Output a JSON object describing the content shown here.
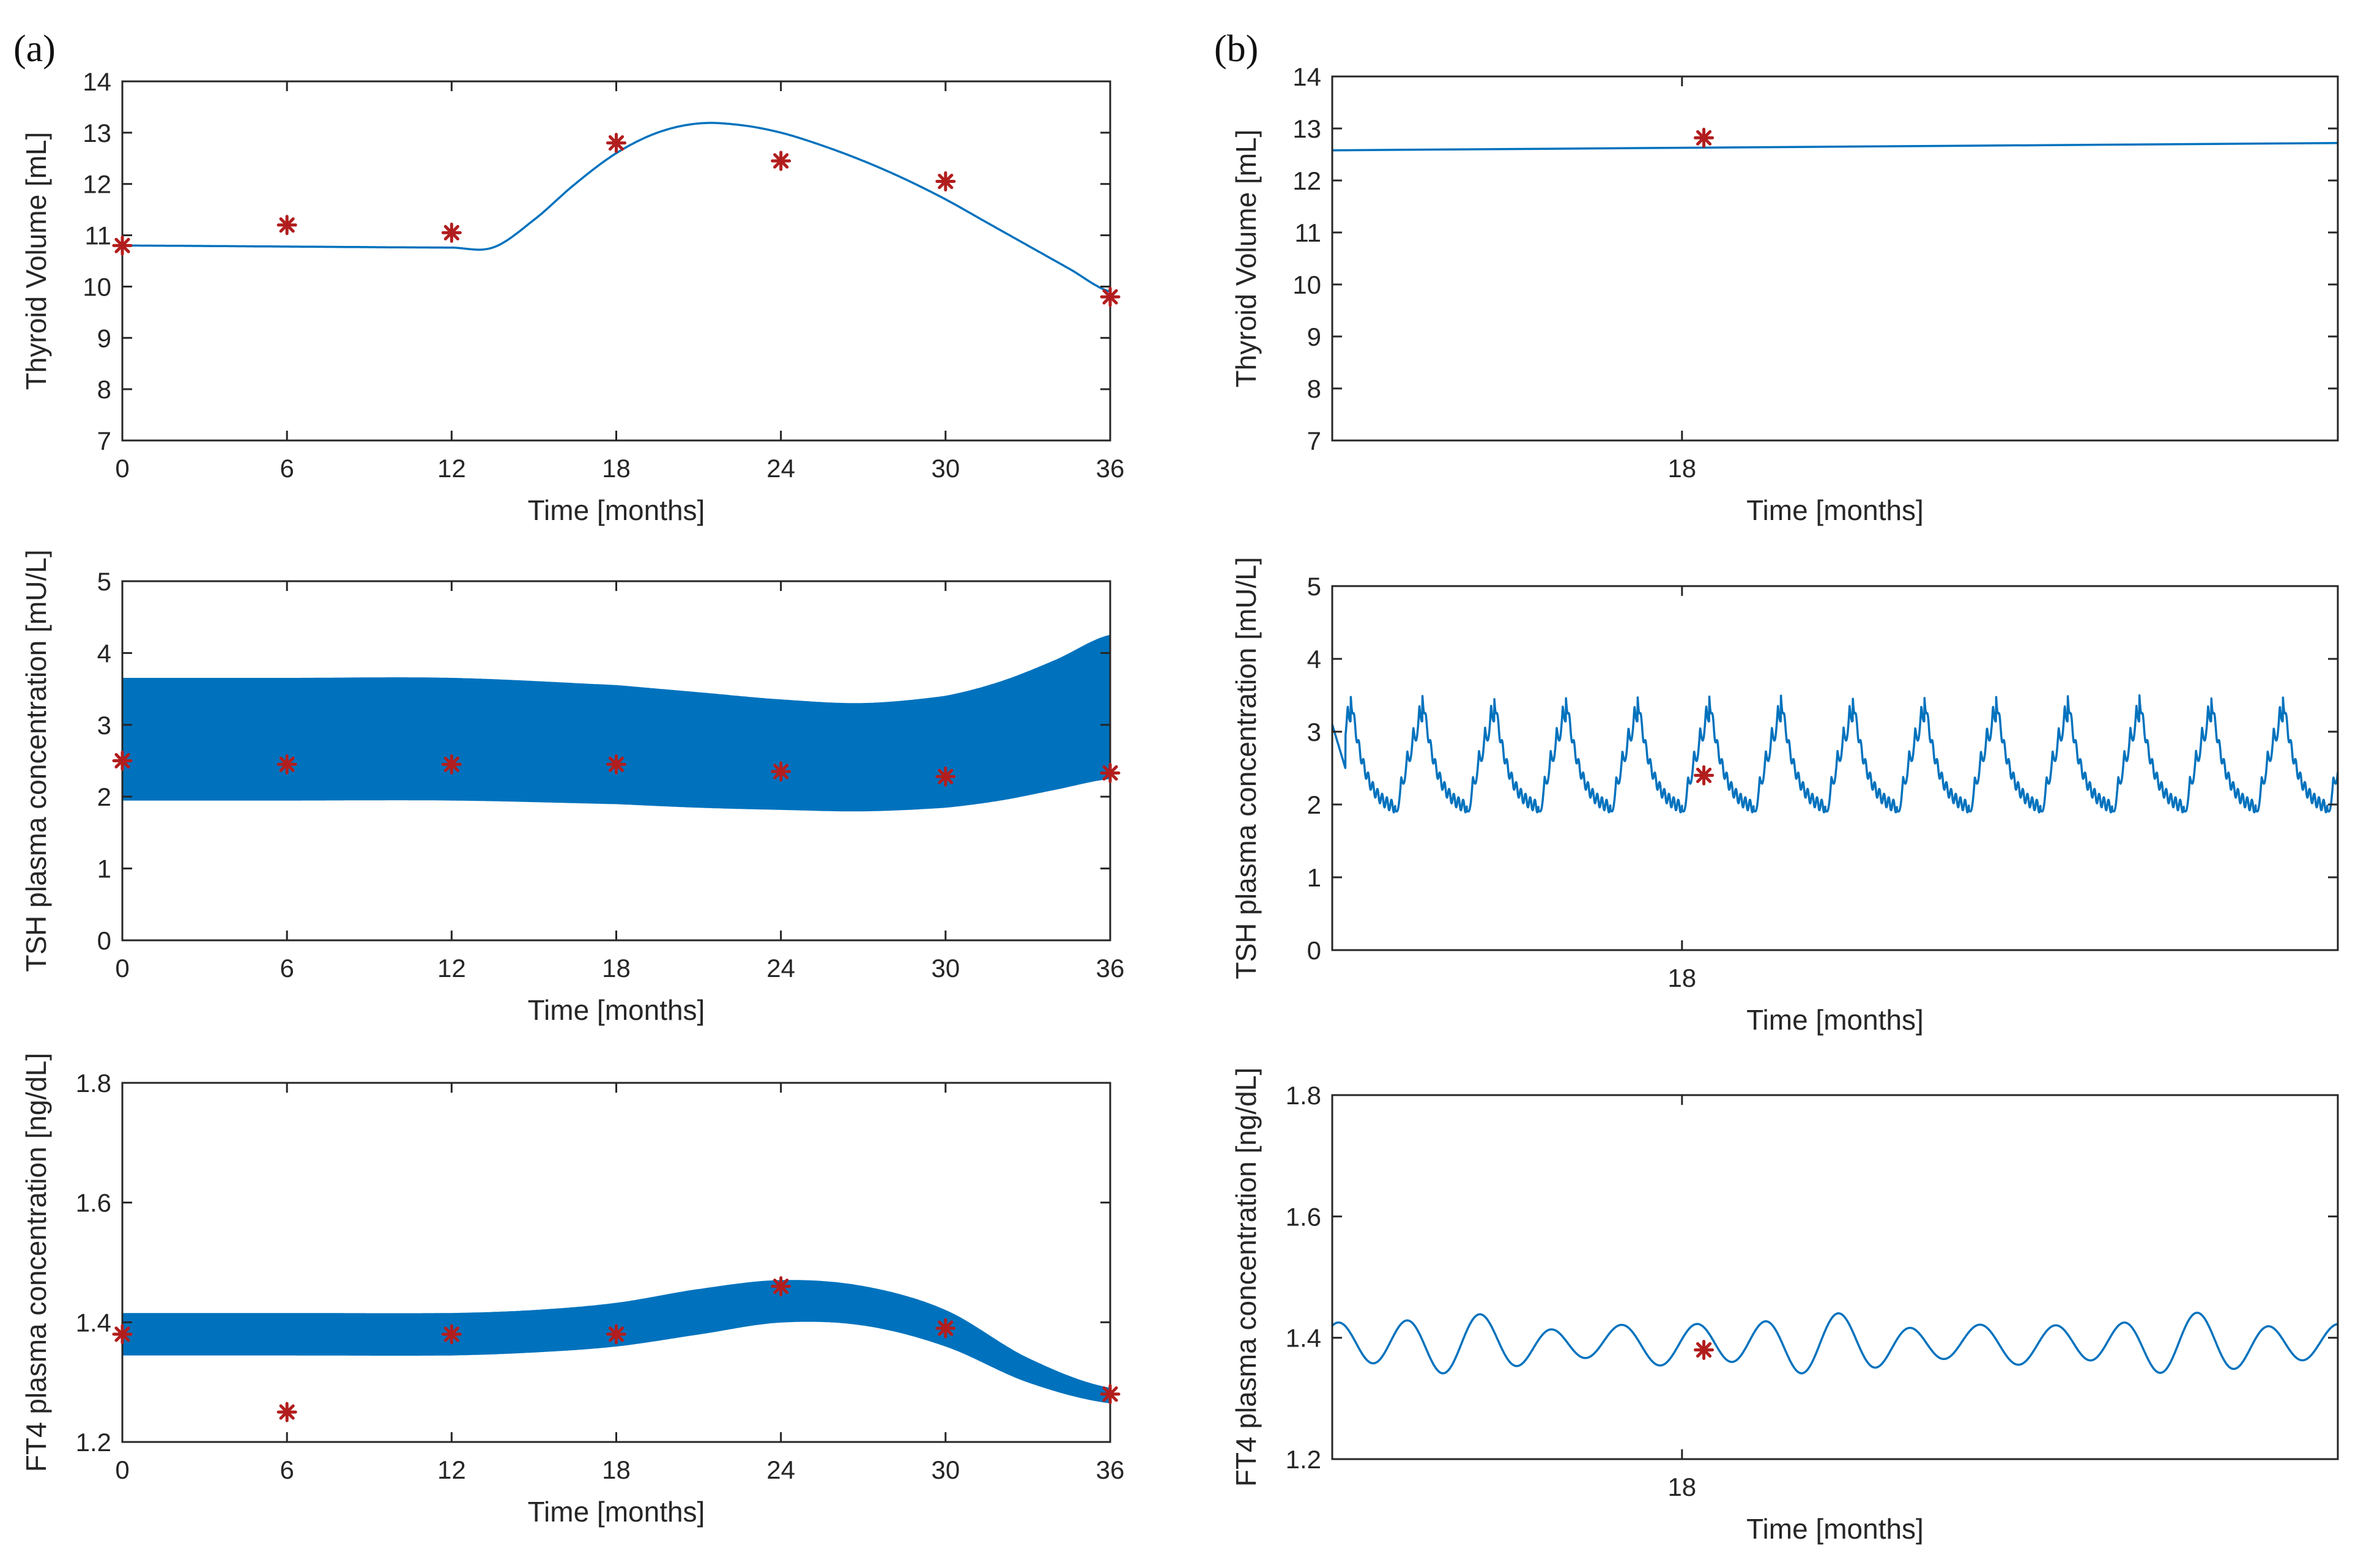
{
  "panel_labels": {
    "a": "(a)",
    "b": "(b)"
  },
  "chart_data": [
    {
      "id": "a1",
      "type": "line",
      "panel": "(a)",
      "xlabel": "Time [months]",
      "ylabel": "Thyroid Volume [mL]",
      "xlim": [
        0,
        36
      ],
      "ylim": [
        7,
        14
      ],
      "xticks": [
        0,
        6,
        12,
        18,
        24,
        30,
        36
      ],
      "xtick_labels": [
        "0",
        "6",
        "12",
        "18",
        "24",
        "30",
        "36"
      ],
      "yticks": [
        7,
        8,
        9,
        10,
        11,
        12,
        13,
        14
      ],
      "ytick_labels": [
        "7",
        "8",
        "9",
        "10",
        "11",
        "12",
        "13",
        "14"
      ],
      "grid": false,
      "series": [
        {
          "name": "model",
          "style": "line",
          "x": [
            0,
            6,
            12,
            13.5,
            15,
            16.5,
            18,
            19.5,
            21,
            22.5,
            24,
            25.5,
            27,
            28.5,
            30,
            31.5,
            33,
            34.5,
            36
          ],
          "y": [
            10.8,
            10.78,
            10.76,
            10.76,
            11.3,
            12.0,
            12.6,
            13.0,
            13.18,
            13.15,
            13.0,
            12.75,
            12.45,
            12.1,
            11.7,
            11.25,
            10.8,
            10.35,
            9.9
          ]
        },
        {
          "name": "data",
          "style": "marker",
          "x": [
            0,
            6,
            12,
            18,
            24,
            30,
            36
          ],
          "y": [
            10.8,
            11.2,
            11.05,
            12.8,
            12.45,
            12.05,
            9.8
          ]
        }
      ]
    },
    {
      "id": "a2",
      "type": "area",
      "panel": "(a)",
      "xlabel": "Time [months]",
      "ylabel": "TSH plasma concentration [mU/L]",
      "xlim": [
        0,
        36
      ],
      "ylim": [
        0,
        5
      ],
      "xticks": [
        0,
        6,
        12,
        18,
        24,
        30,
        36
      ],
      "xtick_labels": [
        "0",
        "6",
        "12",
        "18",
        "24",
        "30",
        "36"
      ],
      "yticks": [
        0,
        1,
        2,
        3,
        4,
        5
      ],
      "ytick_labels": [
        "0",
        "1",
        "2",
        "3",
        "4",
        "5"
      ],
      "grid": false,
      "series": [
        {
          "name": "model oscillation envelope",
          "style": "band",
          "x": [
            0,
            6,
            12,
            18,
            21,
            24,
            27,
            30,
            32,
            34,
            36
          ],
          "upper": [
            3.65,
            3.65,
            3.65,
            3.55,
            3.45,
            3.35,
            3.3,
            3.4,
            3.6,
            3.9,
            4.25
          ],
          "lower": [
            1.95,
            1.95,
            1.95,
            1.9,
            1.85,
            1.82,
            1.8,
            1.85,
            1.95,
            2.1,
            2.25
          ]
        },
        {
          "name": "data",
          "style": "marker",
          "x": [
            0,
            6,
            12,
            18,
            24,
            30,
            36
          ],
          "y": [
            2.5,
            2.45,
            2.45,
            2.45,
            2.35,
            2.28,
            2.33
          ]
        }
      ]
    },
    {
      "id": "a3",
      "type": "area",
      "panel": "(a)",
      "xlabel": "Time [months]",
      "ylabel": "FT4 plasma concentration [ng/dL]",
      "xlim": [
        0,
        36
      ],
      "ylim": [
        1.2,
        1.8
      ],
      "xticks": [
        0,
        6,
        12,
        18,
        24,
        30,
        36
      ],
      "xtick_labels": [
        "0",
        "6",
        "12",
        "18",
        "24",
        "30",
        "36"
      ],
      "yticks": [
        1.2,
        1.4,
        1.6,
        1.8
      ],
      "ytick_labels": [
        "1.2",
        "1.4",
        "1.6",
        "1.8"
      ],
      "grid": false,
      "series": [
        {
          "name": "model oscillation envelope",
          "style": "band",
          "x": [
            0,
            6,
            12,
            15,
            18,
            21,
            24,
            27,
            30,
            33,
            36
          ],
          "upper": [
            1.415,
            1.415,
            1.415,
            1.42,
            1.432,
            1.455,
            1.47,
            1.46,
            1.42,
            1.34,
            1.29
          ],
          "lower": [
            1.345,
            1.345,
            1.345,
            1.35,
            1.36,
            1.38,
            1.4,
            1.395,
            1.36,
            1.3,
            1.265
          ]
        },
        {
          "name": "data",
          "style": "marker",
          "x": [
            0,
            6,
            12,
            18,
            24,
            30,
            36
          ],
          "y": [
            1.38,
            1.25,
            1.38,
            1.38,
            1.46,
            1.39,
            1.28
          ]
        }
      ]
    },
    {
      "id": "b1",
      "type": "line",
      "panel": "(b)",
      "xlabel": "Time [months]",
      "ylabel": "Thyroid Volume [mL]",
      "xlim": [
        17.2,
        19.5
      ],
      "ylim": [
        7,
        14
      ],
      "xticks": [
        18
      ],
      "xtick_labels": [
        "18"
      ],
      "yticks": [
        7,
        8,
        9,
        10,
        11,
        12,
        13,
        14
      ],
      "ytick_labels": [
        "7",
        "8",
        "9",
        "10",
        "11",
        "12",
        "13",
        "14"
      ],
      "grid": false,
      "series": [
        {
          "name": "model",
          "style": "line",
          "x": [
            17.2,
            19.5
          ],
          "y": [
            12.58,
            12.72
          ]
        },
        {
          "name": "data",
          "style": "marker",
          "x": [
            18.05
          ],
          "y": [
            12.82
          ]
        }
      ]
    },
    {
      "id": "b2",
      "type": "line",
      "panel": "(b)",
      "xlabel": "Time [months]",
      "ylabel": "TSH plasma concentration [mU/L]",
      "xlim": [
        17.2,
        19.5
      ],
      "ylim": [
        0,
        5
      ],
      "xticks": [
        18
      ],
      "xtick_labels": [
        "18"
      ],
      "yticks": [
        0,
        1,
        2,
        3,
        4,
        5
      ],
      "ytick_labels": [
        "0",
        "1",
        "2",
        "3",
        "4",
        "5"
      ],
      "grid": false,
      "series": [
        {
          "name": "model",
          "style": "line",
          "period": 0.164,
          "pulses_per_cycle": 9,
          "peak": 3.5,
          "trough": 1.9,
          "start_value": 3.1
        },
        {
          "name": "data",
          "style": "marker",
          "x": [
            18.05
          ],
          "y": [
            2.4
          ]
        }
      ]
    },
    {
      "id": "b3",
      "type": "line",
      "panel": "(b)",
      "xlabel": "Time [months]",
      "ylabel": "FT4 plasma concentration [ng/dL]",
      "xlim": [
        17.2,
        19.5
      ],
      "ylim": [
        1.2,
        1.8
      ],
      "xticks": [
        18
      ],
      "xtick_labels": [
        "18"
      ],
      "yticks": [
        1.2,
        1.4,
        1.6,
        1.8
      ],
      "ytick_labels": [
        "1.2",
        "1.4",
        "1.6",
        "1.8"
      ],
      "grid": false,
      "series": [
        {
          "name": "model",
          "style": "line",
          "period": 0.164,
          "mean": 1.39,
          "amplitude": 0.035
        },
        {
          "name": "data",
          "style": "marker",
          "x": [
            18.05
          ],
          "y": [
            1.38
          ]
        }
      ]
    }
  ]
}
